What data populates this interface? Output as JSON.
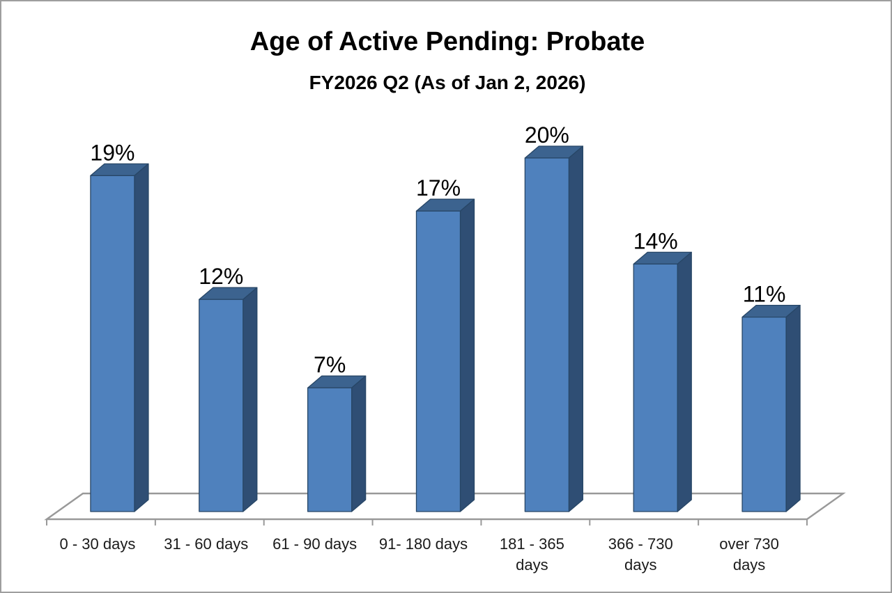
{
  "chart_data": {
    "type": "bar",
    "style": "3d-column",
    "title": "Age of Active Pending: Probate",
    "subtitle": "FY2026 Q2 (As of Jan 2, 2026)",
    "categories": [
      "0 - 30 days",
      "31 - 60 days",
      "61 - 90 days",
      "91- 180 days",
      "181 - 365 days",
      "366 - 730 days",
      "over 730 days"
    ],
    "category_label_lines": [
      [
        "0 - 30 days"
      ],
      [
        "31 - 60 days"
      ],
      [
        "61 - 90 days"
      ],
      [
        "91- 180 days"
      ],
      [
        "181 - 365",
        "days"
      ],
      [
        "366 - 730",
        "days"
      ],
      [
        "over 730",
        "days"
      ]
    ],
    "values": [
      19,
      12,
      7,
      17,
      20,
      14,
      11
    ],
    "value_labels": [
      "19%",
      "12%",
      "7%",
      "17%",
      "20%",
      "14%",
      "11%"
    ],
    "unit": "percent",
    "xlabel": "",
    "ylabel": "",
    "ylim": [
      0,
      22
    ],
    "legend": "none",
    "gridlines": false,
    "axis": "category-axis-only",
    "colors": {
      "bar_front": "#4F81BD",
      "bar_top": "#3C638F",
      "bar_side": "#2F4E74",
      "bar_edge": "#274666",
      "floor_line": "#999999",
      "text": "#000000",
      "background": "#FFFFFF"
    }
  }
}
